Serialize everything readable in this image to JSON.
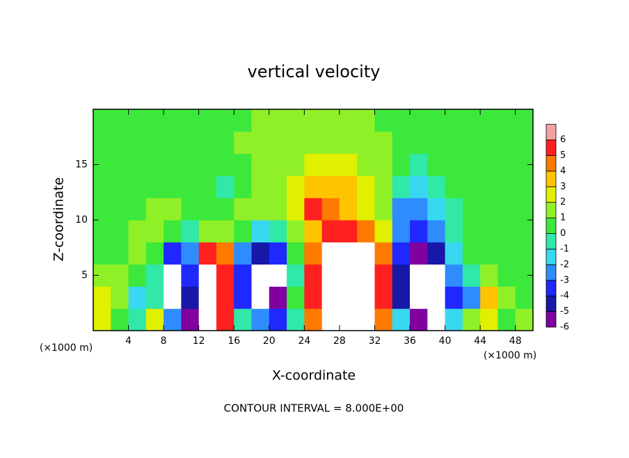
{
  "chart_data": {
    "type": "contour",
    "title": "vertical velocity",
    "x_label": "X-coordinate",
    "y_label": "Z-coordinate",
    "x_unit_left": "(×1000 m)",
    "x_unit_right": "(×1000 m)",
    "annotation": "CONTOUR INTERVAL = 8.000E+00",
    "xlim": [
      0,
      50
    ],
    "ylim": [
      0,
      20
    ],
    "xticks": [
      4,
      8,
      12,
      16,
      20,
      24,
      28,
      32,
      36,
      40,
      44,
      48
    ],
    "yticks": [
      5,
      10,
      15
    ],
    "x": [
      1,
      3,
      5,
      7,
      9,
      11,
      13,
      15,
      17,
      19,
      21,
      23,
      25,
      27,
      29,
      31,
      33,
      35,
      37,
      39,
      41,
      43,
      45,
      47,
      49
    ],
    "y": [
      1,
      3,
      5,
      7,
      9,
      11,
      13,
      15,
      17,
      19
    ],
    "z": [
      [
        2,
        0,
        -1,
        2,
        -3,
        -6,
        7,
        5,
        -1,
        -3,
        -4,
        -1,
        4,
        7,
        7,
        7,
        4,
        -2,
        -6,
        -7,
        -2,
        1,
        2,
        0,
        1
      ],
      [
        2,
        1,
        -2,
        -1,
        -7,
        -5,
        8,
        5,
        -4,
        -7,
        -6,
        0,
        5,
        7,
        8,
        7,
        5,
        -5,
        -7,
        -7,
        -4,
        -3,
        3,
        1,
        0
      ],
      [
        1,
        1,
        0,
        -1,
        -7,
        -4,
        8,
        5,
        -4,
        -7,
        -7,
        -1,
        5,
        8,
        8,
        7,
        5,
        -5,
        -7,
        -7,
        -3,
        -1,
        1,
        0,
        0
      ],
      [
        0,
        0,
        1,
        0,
        -4,
        -3,
        5,
        4,
        -3,
        -5,
        -4,
        0,
        4,
        7,
        7,
        7,
        4,
        -4,
        -6,
        -5,
        -2,
        0,
        0,
        0,
        0
      ],
      [
        0,
        0,
        1,
        1,
        0,
        -1,
        1,
        1,
        0,
        -2,
        -1,
        1,
        3,
        5,
        5,
        4,
        2,
        -3,
        -4,
        -3,
        -1,
        0,
        0,
        0,
        0
      ],
      [
        0,
        0,
        0,
        1,
        1,
        0,
        0,
        0,
        1,
        1,
        1,
        2,
        5,
        4,
        3,
        2,
        1,
        -3,
        -3,
        -2,
        -1,
        0,
        0,
        0,
        0
      ],
      [
        0,
        0,
        0,
        0,
        0,
        0,
        0,
        -1,
        0,
        1,
        1,
        2,
        3,
        3,
        3,
        2,
        1,
        -1,
        -2,
        -1,
        0,
        0,
        0,
        0,
        0
      ],
      [
        0,
        0,
        0,
        0,
        0,
        0,
        0,
        0,
        0,
        1,
        1,
        1,
        2,
        2,
        2,
        1,
        1,
        0,
        -1,
        0,
        0,
        0,
        0,
        0,
        0
      ],
      [
        0,
        0,
        0,
        0,
        0,
        0,
        0,
        0,
        1,
        1,
        1,
        1,
        1,
        1,
        1,
        1,
        1,
        0,
        0,
        0,
        0,
        0,
        0,
        0,
        0
      ],
      [
        0,
        0,
        0,
        0,
        0,
        0,
        0,
        0,
        0,
        1,
        1,
        1,
        1,
        1,
        1,
        1,
        0,
        0,
        0,
        0,
        0,
        0,
        0,
        0,
        0
      ]
    ],
    "levels": [
      -6,
      -5,
      -4,
      -3,
      -2,
      -1,
      0,
      1,
      2,
      3,
      4,
      5,
      6
    ],
    "colors": [
      "#8000a0",
      "#1818a8",
      "#1e28ff",
      "#2e8cff",
      "#38d8f0",
      "#30e8a8",
      "#3ce83c",
      "#90f028",
      "#e0f000",
      "#ffc400",
      "#ff7a00",
      "#ff2020",
      "#f4a0a0"
    ],
    "out_of_range_color": "#ffffff"
  }
}
